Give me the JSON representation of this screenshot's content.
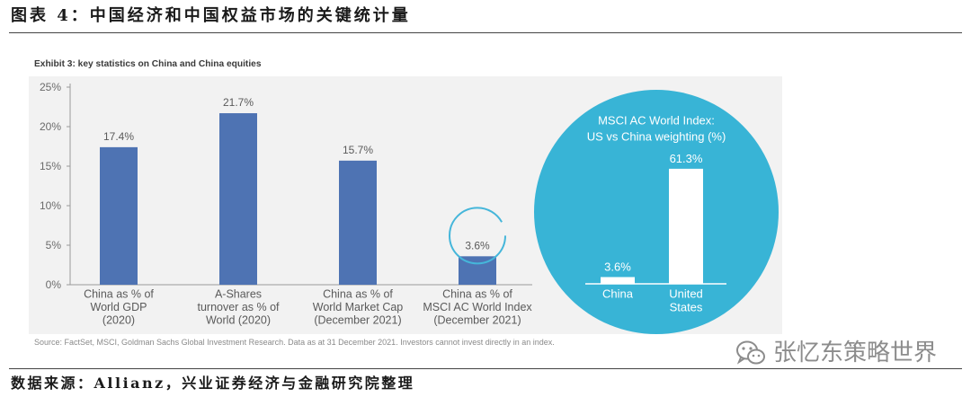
{
  "header": {
    "title": "图表 4：中国经济和中国权益市场的关键统计量"
  },
  "chart_data": [
    {
      "type": "bar",
      "title": "Exhibit 3: key statistics on China and China equities",
      "categories": [
        [
          "China as % of",
          "World GDP",
          "(2020)"
        ],
        [
          "A-Shares",
          "turnover as % of",
          "World (2020)"
        ],
        [
          "China as % of",
          "World Market Cap",
          "(December 2021)"
        ],
        [
          "China as % of",
          "MSCI AC World Index",
          "(December 2021)"
        ]
      ],
      "values": [
        17.4,
        21.7,
        15.7,
        3.6
      ],
      "data_labels": [
        "17.4%",
        "21.7%",
        "15.7%",
        "3.6%"
      ],
      "yticks": [
        0,
        5,
        10,
        15,
        20,
        25
      ],
      "ytick_labels": [
        "0%",
        "5%",
        "10%",
        "15%",
        "20%",
        "25%"
      ],
      "ylim": [
        0,
        25
      ],
      "grid": false,
      "highlight_index": 3,
      "source": "Source: FactSet, MSCI, Goldman Sachs Global Investment Research. Data as at 31 December 2021. Investors cannot invest directly in an index."
    },
    {
      "type": "bar",
      "title_lines": [
        "MSCI AC World Index:",
        "US vs China weighting (%)"
      ],
      "categories": [
        [
          "China"
        ],
        [
          "United",
          "States"
        ]
      ],
      "values": [
        3.6,
        61.3
      ],
      "data_labels": [
        "3.6%",
        "61.3%"
      ],
      "grid": false
    }
  ],
  "colors": {
    "bar": "#4e73b3",
    "panel_bg": "#f2f2f2",
    "highlight_ring": "#45b6da",
    "inset_circle": "#38b4d6",
    "inset_bar": "#ffffff"
  },
  "watermark": {
    "icon": "wechat-icon",
    "text": "张忆东策略世界"
  },
  "footer": {
    "text": "数据来源：Allianz，兴业证券经济与金融研究院整理"
  }
}
